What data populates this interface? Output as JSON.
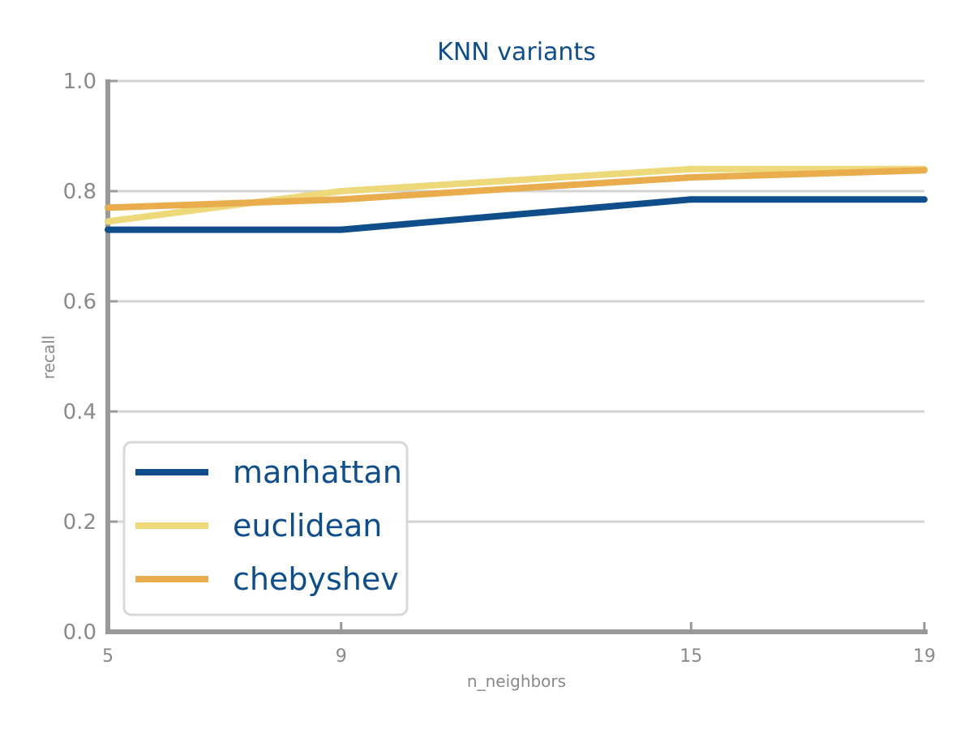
{
  "chart_data": {
    "type": "line",
    "title": "KNN variants",
    "xlabel": "n_neighbors",
    "ylabel": "recall",
    "x": [
      5,
      9,
      15,
      19
    ],
    "x_tick_labels": [
      "5",
      "9",
      "15",
      "19"
    ],
    "xlim": [
      5,
      19
    ],
    "ylim": [
      0.0,
      1.0
    ],
    "y_ticks": [
      0.0,
      0.2,
      0.4,
      0.6,
      0.8,
      1.0
    ],
    "y_tick_labels": [
      "0.0",
      "0.2",
      "0.4",
      "0.6",
      "0.8",
      "1.0"
    ],
    "grid": "horizontal",
    "legend_position": "lower-left",
    "series": [
      {
        "name": "manhattan",
        "color": "#0f4e8a",
        "values": [
          0.73,
          0.73,
          0.785,
          0.785
        ]
      },
      {
        "name": "euclidean",
        "color": "#edd97a",
        "values": [
          0.745,
          0.8,
          0.84,
          0.84
        ]
      },
      {
        "name": "chebyshev",
        "color": "#e9ad4e",
        "values": [
          0.77,
          0.785,
          0.825,
          0.838
        ]
      }
    ],
    "colors": {
      "title": "#0f4e8a",
      "axis": "#999999",
      "grid": "#d4d4d4",
      "tick_text": "#8a8a8a"
    }
  }
}
